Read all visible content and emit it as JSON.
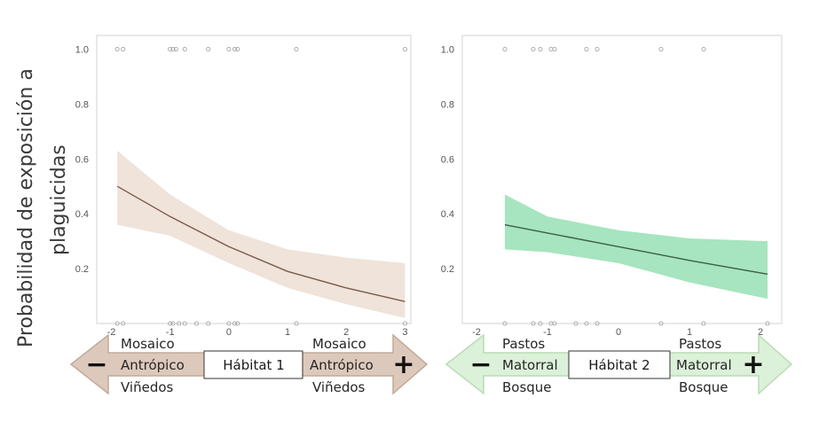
{
  "y_axis_label": [
    "Probabilidad de exposición a",
    "plaguicidas"
  ],
  "chart_data": [
    {
      "type": "line",
      "name": "habitat1",
      "xlim": [
        -2.25,
        3.1
      ],
      "ylim": [
        0,
        1.05
      ],
      "x_ticks": [
        -2,
        -1,
        0,
        1,
        2,
        3
      ],
      "y_ticks": [
        0.2,
        0.4,
        0.6,
        0.8,
        1.0
      ],
      "y_tick_labels": [
        "0.2",
        "0.4",
        "0.6",
        "0.8",
        "1.0"
      ],
      "x_tick_labels": [
        "-2",
        "-1",
        "0",
        "1",
        "2",
        "3"
      ],
      "fit": {
        "x": [
          -1.9,
          -1.0,
          0.0,
          1.0,
          2.0,
          3.0
        ],
        "y": [
          0.5,
          0.39,
          0.28,
          0.19,
          0.13,
          0.08
        ]
      },
      "ci_upper": [
        0.63,
        0.47,
        0.34,
        0.27,
        0.24,
        0.22
      ],
      "ci_lower": [
        0.36,
        0.32,
        0.22,
        0.13,
        0.07,
        0.02
      ],
      "points_y1": [
        -1.9,
        -1.8,
        -1.0,
        -0.95,
        -0.9,
        -0.75,
        -0.35,
        0.0,
        0.1,
        0.15,
        1.15,
        3.0
      ],
      "points_y0": [
        -1.9,
        -1.8,
        -1.0,
        -0.95,
        -0.85,
        -0.75,
        -0.55,
        -0.35,
        0.0,
        0.1,
        0.15,
        1.15,
        3.0
      ],
      "line_color": "#7a5b48",
      "band_color": "#efe3da",
      "arrow": {
        "center_label": "Hábitat 1",
        "left_labels": [
          "Mosaico",
          "Antrópico",
          "Viñedos"
        ],
        "right_labels": [
          "Mosaico",
          "Antrópico",
          "Viñedos"
        ],
        "minus": "−",
        "plus": "+",
        "fill": "#ddc9bb",
        "stroke": "#c2aa98"
      }
    },
    {
      "type": "line",
      "name": "habitat2",
      "xlim": [
        -2.2,
        2.3
      ],
      "ylim": [
        0,
        1.05
      ],
      "x_ticks": [
        -2,
        -1,
        0,
        1,
        2
      ],
      "y_ticks": [
        0.2,
        0.4,
        0.6,
        0.8,
        1.0
      ],
      "y_tick_labels": [
        "0.2",
        "0.4",
        "0.6",
        "0.8",
        "1.0"
      ],
      "x_tick_labels": [
        "-2",
        "-1",
        "0",
        "1",
        "2"
      ],
      "fit": {
        "x": [
          -1.6,
          -1.0,
          0.0,
          1.0,
          2.1
        ],
        "y": [
          0.36,
          0.33,
          0.28,
          0.23,
          0.18
        ]
      },
      "ci_upper": [
        0.47,
        0.39,
        0.34,
        0.31,
        0.3
      ],
      "ci_lower": [
        0.27,
        0.26,
        0.22,
        0.15,
        0.09
      ],
      "points_y1": [
        -1.6,
        -1.2,
        -1.1,
        -0.95,
        -0.9,
        -0.45,
        -0.3,
        0.6,
        1.2
      ],
      "points_y0": [
        -1.6,
        -1.2,
        -1.1,
        -0.95,
        -0.9,
        -0.6,
        -0.45,
        -0.3,
        0.6,
        1.2,
        2.1
      ],
      "line_color": "#3d5e47",
      "band_color": "#a6e5bf",
      "arrow": {
        "center_label": "Hábitat 2",
        "left_labels": [
          "Pastos",
          "Matorral",
          "Bosque"
        ],
        "right_labels": [
          "Pastos",
          "Matorral",
          "Bosque"
        ],
        "minus": "−",
        "plus": "+",
        "fill": "#dcf1d9",
        "stroke": "#b9dcb5"
      }
    }
  ]
}
